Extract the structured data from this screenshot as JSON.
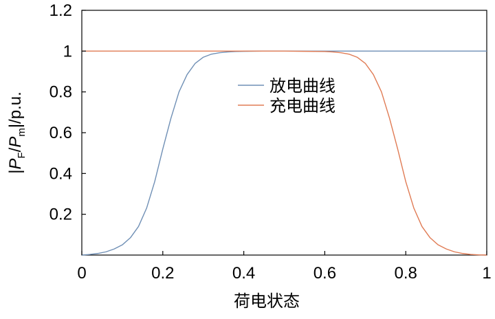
{
  "chart_data": {
    "type": "line",
    "title": "",
    "xlabel": "荷电状态",
    "ylabel": {
      "prefix": "|",
      "p1": "P",
      "sub1": "F",
      "slash": "/",
      "p2": "P",
      "sub2": "m",
      "suffix": "|/p.u."
    },
    "xlim": [
      0,
      1
    ],
    "ylim": [
      0,
      1.2
    ],
    "x_ticks": [
      0,
      0.2,
      0.4,
      0.6,
      0.8,
      1
    ],
    "x_tick_labels": [
      "0",
      "0.2",
      "0.4",
      "0.6",
      "0.8",
      "1"
    ],
    "y_ticks": [
      0.2,
      0.4,
      0.6,
      0.8,
      1,
      1.2
    ],
    "y_tick_labels": [
      "0.2",
      "0.4",
      "0.6",
      "0.8",
      "1",
      "1.2"
    ],
    "grid": false,
    "legend_position": "center",
    "series": [
      {
        "name": "放电曲线",
        "color": "#6f8fb5",
        "x": [
          0,
          0.02,
          0.04,
          0.06,
          0.08,
          0.1,
          0.12,
          0.14,
          0.16,
          0.18,
          0.2,
          0.22,
          0.24,
          0.26,
          0.28,
          0.3,
          0.32,
          0.34,
          0.36,
          0.38,
          0.4,
          0.45,
          0.5,
          0.55,
          0.6,
          0.65,
          0.7,
          0.75,
          0.8,
          0.85,
          0.9,
          0.95,
          1
        ],
        "y": [
          0,
          0.003,
          0.008,
          0.016,
          0.03,
          0.05,
          0.085,
          0.14,
          0.23,
          0.36,
          0.52,
          0.67,
          0.8,
          0.885,
          0.94,
          0.97,
          0.985,
          0.992,
          0.996,
          0.998,
          0.999,
          1,
          1,
          1,
          1,
          1,
          1,
          1,
          1,
          1,
          1,
          1,
          1
        ]
      },
      {
        "name": "充电曲线",
        "color": "#e07b54",
        "x": [
          0,
          0.05,
          0.1,
          0.15,
          0.2,
          0.25,
          0.3,
          0.35,
          0.4,
          0.45,
          0.5,
          0.55,
          0.6,
          0.62,
          0.64,
          0.66,
          0.68,
          0.7,
          0.72,
          0.74,
          0.76,
          0.78,
          0.8,
          0.82,
          0.84,
          0.86,
          0.88,
          0.9,
          0.92,
          0.94,
          0.96,
          0.98,
          1
        ],
        "y": [
          1,
          1,
          1,
          1,
          1,
          1,
          1,
          1,
          1,
          1,
          1,
          0.999,
          0.998,
          0.996,
          0.992,
          0.985,
          0.97,
          0.94,
          0.885,
          0.8,
          0.67,
          0.52,
          0.36,
          0.23,
          0.14,
          0.085,
          0.05,
          0.03,
          0.016,
          0.008,
          0.003,
          0.001,
          0
        ]
      }
    ]
  }
}
